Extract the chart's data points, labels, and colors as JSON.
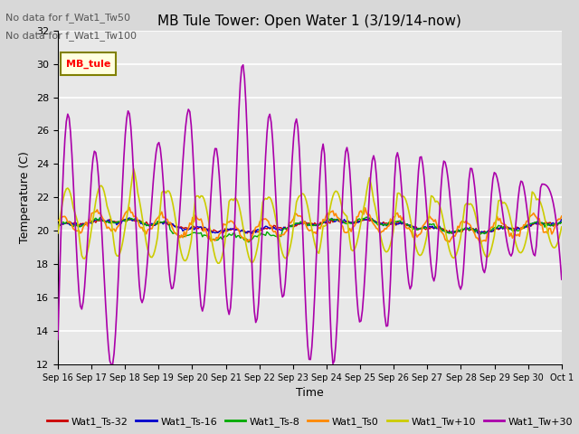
{
  "title": "MB Tule Tower: Open Water 1 (3/19/14-now)",
  "xlabel": "Time",
  "ylabel": "Temperature (C)",
  "ylim": [
    12,
    32
  ],
  "yticks": [
    12,
    14,
    16,
    18,
    20,
    22,
    24,
    26,
    28,
    30,
    32
  ],
  "annotations": [
    "No data for f_Wat1_Tw50",
    "No data for f_Wat1_Tw100"
  ],
  "legend_label": "MB_tule",
  "series_labels": [
    "Wat1_Ts-32",
    "Wat1_Ts-16",
    "Wat1_Ts-8",
    "Wat1_Ts0",
    "Wat1_Tw+10",
    "Wat1_Tw+30"
  ],
  "series_colors": [
    "#cc0000",
    "#0000cc",
    "#00aa00",
    "#ff8800",
    "#cccc00",
    "#aa00aa"
  ],
  "figwidth": 6.4,
  "figheight": 4.8,
  "dpi": 100
}
